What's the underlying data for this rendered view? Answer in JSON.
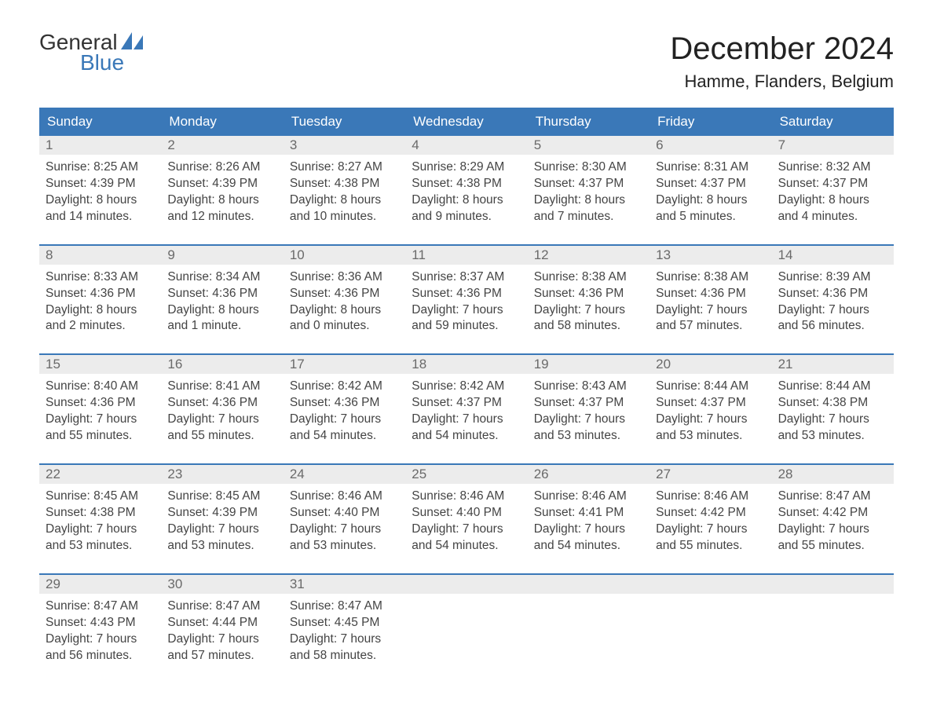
{
  "logo": {
    "line1": "General",
    "line2": "Blue"
  },
  "title": "December 2024",
  "location": "Hamme, Flanders, Belgium",
  "colors": {
    "brand_blue": "#3a78b8",
    "daynum_bg": "#ececec",
    "daynum_text": "#6a6a6a",
    "body_text": "#444444",
    "background": "#ffffff"
  },
  "fonts": {
    "family": "Arial",
    "title_size_pt": 30,
    "location_size_pt": 17,
    "weekday_size_pt": 13,
    "body_size_pt": 12
  },
  "weekdays": [
    "Sunday",
    "Monday",
    "Tuesday",
    "Wednesday",
    "Thursday",
    "Friday",
    "Saturday"
  ],
  "weeks": [
    [
      {
        "n": "1",
        "sr": "8:25 AM",
        "ss": "4:39 PM",
        "dl": "8 hours and 14 minutes."
      },
      {
        "n": "2",
        "sr": "8:26 AM",
        "ss": "4:39 PM",
        "dl": "8 hours and 12 minutes."
      },
      {
        "n": "3",
        "sr": "8:27 AM",
        "ss": "4:38 PM",
        "dl": "8 hours and 10 minutes."
      },
      {
        "n": "4",
        "sr": "8:29 AM",
        "ss": "4:38 PM",
        "dl": "8 hours and 9 minutes."
      },
      {
        "n": "5",
        "sr": "8:30 AM",
        "ss": "4:37 PM",
        "dl": "8 hours and 7 minutes."
      },
      {
        "n": "6",
        "sr": "8:31 AM",
        "ss": "4:37 PM",
        "dl": "8 hours and 5 minutes."
      },
      {
        "n": "7",
        "sr": "8:32 AM",
        "ss": "4:37 PM",
        "dl": "8 hours and 4 minutes."
      }
    ],
    [
      {
        "n": "8",
        "sr": "8:33 AM",
        "ss": "4:36 PM",
        "dl": "8 hours and 2 minutes."
      },
      {
        "n": "9",
        "sr": "8:34 AM",
        "ss": "4:36 PM",
        "dl": "8 hours and 1 minute."
      },
      {
        "n": "10",
        "sr": "8:36 AM",
        "ss": "4:36 PM",
        "dl": "8 hours and 0 minutes."
      },
      {
        "n": "11",
        "sr": "8:37 AM",
        "ss": "4:36 PM",
        "dl": "7 hours and 59 minutes."
      },
      {
        "n": "12",
        "sr": "8:38 AM",
        "ss": "4:36 PM",
        "dl": "7 hours and 58 minutes."
      },
      {
        "n": "13",
        "sr": "8:38 AM",
        "ss": "4:36 PM",
        "dl": "7 hours and 57 minutes."
      },
      {
        "n": "14",
        "sr": "8:39 AM",
        "ss": "4:36 PM",
        "dl": "7 hours and 56 minutes."
      }
    ],
    [
      {
        "n": "15",
        "sr": "8:40 AM",
        "ss": "4:36 PM",
        "dl": "7 hours and 55 minutes."
      },
      {
        "n": "16",
        "sr": "8:41 AM",
        "ss": "4:36 PM",
        "dl": "7 hours and 55 minutes."
      },
      {
        "n": "17",
        "sr": "8:42 AM",
        "ss": "4:36 PM",
        "dl": "7 hours and 54 minutes."
      },
      {
        "n": "18",
        "sr": "8:42 AM",
        "ss": "4:37 PM",
        "dl": "7 hours and 54 minutes."
      },
      {
        "n": "19",
        "sr": "8:43 AM",
        "ss": "4:37 PM",
        "dl": "7 hours and 53 minutes."
      },
      {
        "n": "20",
        "sr": "8:44 AM",
        "ss": "4:37 PM",
        "dl": "7 hours and 53 minutes."
      },
      {
        "n": "21",
        "sr": "8:44 AM",
        "ss": "4:38 PM",
        "dl": "7 hours and 53 minutes."
      }
    ],
    [
      {
        "n": "22",
        "sr": "8:45 AM",
        "ss": "4:38 PM",
        "dl": "7 hours and 53 minutes."
      },
      {
        "n": "23",
        "sr": "8:45 AM",
        "ss": "4:39 PM",
        "dl": "7 hours and 53 minutes."
      },
      {
        "n": "24",
        "sr": "8:46 AM",
        "ss": "4:40 PM",
        "dl": "7 hours and 53 minutes."
      },
      {
        "n": "25",
        "sr": "8:46 AM",
        "ss": "4:40 PM",
        "dl": "7 hours and 54 minutes."
      },
      {
        "n": "26",
        "sr": "8:46 AM",
        "ss": "4:41 PM",
        "dl": "7 hours and 54 minutes."
      },
      {
        "n": "27",
        "sr": "8:46 AM",
        "ss": "4:42 PM",
        "dl": "7 hours and 55 minutes."
      },
      {
        "n": "28",
        "sr": "8:47 AM",
        "ss": "4:42 PM",
        "dl": "7 hours and 55 minutes."
      }
    ],
    [
      {
        "n": "29",
        "sr": "8:47 AM",
        "ss": "4:43 PM",
        "dl": "7 hours and 56 minutes."
      },
      {
        "n": "30",
        "sr": "8:47 AM",
        "ss": "4:44 PM",
        "dl": "7 hours and 57 minutes."
      },
      {
        "n": "31",
        "sr": "8:47 AM",
        "ss": "4:45 PM",
        "dl": "7 hours and 58 minutes."
      },
      null,
      null,
      null,
      null
    ]
  ],
  "labels": {
    "sunrise": "Sunrise:",
    "sunset": "Sunset:",
    "daylight": "Daylight:"
  }
}
